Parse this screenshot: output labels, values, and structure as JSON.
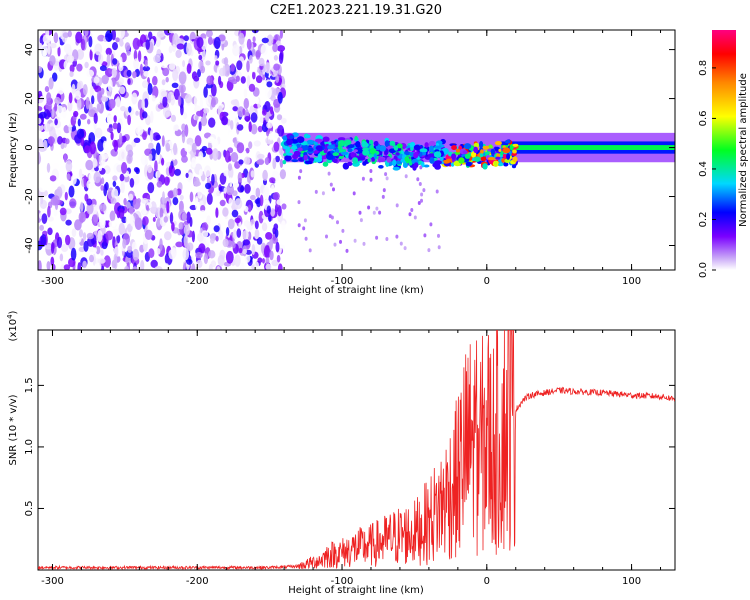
{
  "figure_title": "C2E1.2023.221.19.31.G20",
  "chart_data": [
    {
      "type": "heatmap",
      "title": "C2E1.2023.221.19.31.G20",
      "xlabel": "Height of straight line (km)",
      "ylabel": "Frequency (Hz)",
      "xlim": [
        -310,
        130
      ],
      "ylim": [
        -50,
        48
      ],
      "x_ticks": [
        -300,
        -200,
        -100,
        0,
        100
      ],
      "y_ticks": [
        -40,
        -20,
        0,
        20,
        40
      ],
      "colorbar": {
        "label": "Normalized spectral amplitude",
        "range": [
          0,
          0.95
        ],
        "ticks": [
          0.0,
          0.2,
          0.4,
          0.6,
          0.8
        ]
      },
      "description_regions": [
        {
          "x_range": [
            -310,
            -140
          ],
          "y_range": [
            -50,
            48
          ],
          "amplitude": "low, noisy (0.0-0.15)"
        },
        {
          "x_range": [
            -140,
            20
          ],
          "y_range": [
            -15,
            6
          ],
          "amplitude": "mixed 0.1-0.9, peaks near x=-20 to 15"
        },
        {
          "x_range": [
            20,
            130
          ],
          "y_range": [
            -2,
            2
          ],
          "amplitude": "0.3-0.5 stable line near 0 Hz"
        }
      ],
      "grid": false
    },
    {
      "type": "line",
      "xlabel": "Height of straight line (km)",
      "ylabel": "SNR (10 * v/v)",
      "y_scale_label": "(x10^4)",
      "xlim": [
        -310,
        130
      ],
      "ylim": [
        0,
        1.95
      ],
      "x_ticks": [
        -300,
        -200,
        -100,
        0,
        100
      ],
      "y_ticks": [
        0.5,
        1.0,
        1.5
      ],
      "series": [
        {
          "color": "#ee2222",
          "x": [
            -310,
            -250,
            -200,
            -150,
            -130,
            -115,
            -110,
            -100,
            -90,
            -80,
            -70,
            -60,
            -50,
            -40,
            -30,
            -20,
            -15,
            -12,
            -10,
            -5,
            0,
            5,
            10,
            15,
            20,
            25,
            30,
            40,
            50,
            60,
            80,
            100,
            120,
            130
          ],
          "y": [
            0.02,
            0.02,
            0.02,
            0.02,
            0.03,
            0.08,
            0.12,
            0.14,
            0.18,
            0.2,
            0.24,
            0.28,
            0.3,
            0.4,
            0.55,
            0.75,
            0.95,
            1.0,
            1.05,
            0.95,
            1.1,
            1.0,
            1.1,
            1.2,
            1.3,
            1.38,
            1.42,
            1.44,
            1.46,
            1.45,
            1.44,
            1.42,
            1.41,
            1.39
          ]
        }
      ],
      "grid": false
    }
  ]
}
